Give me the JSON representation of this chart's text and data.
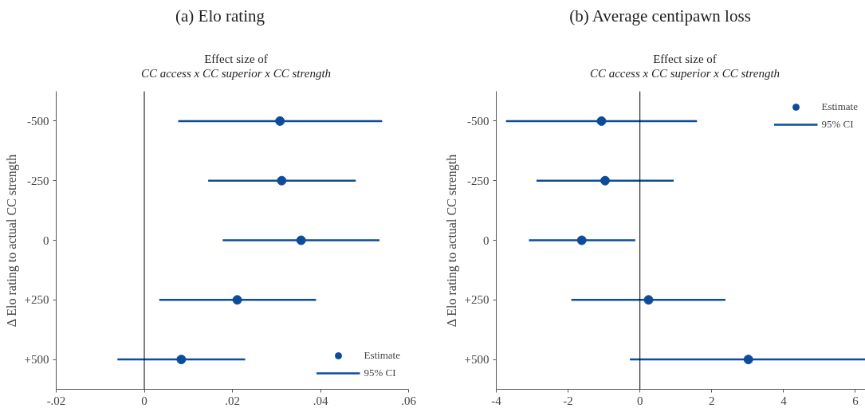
{
  "chart_data": [
    {
      "type": "scatter",
      "orientation": "horizontal",
      "title": "(a) Elo rating",
      "subtitle": "Effect size of\nCC access x CC superior x CC strength",
      "ylabel": "Δ Elo rating to actual CC strength",
      "annotations": [
        "95% CI"
      ],
      "categories": [
        "-500",
        "-250",
        "0",
        "+250",
        "+500"
      ],
      "series": [
        {
          "name": "Estimate",
          "color": "#0d4c9b",
          "values": [
            0.0308,
            0.0312,
            0.0356,
            0.0211,
            0.0084
          ],
          "errors": [
            [
              0.0077,
              0.054
            ],
            [
              0.0145,
              0.048
            ],
            [
              0.0178,
              0.0534
            ],
            [
              0.0034,
              0.039
            ],
            [
              -0.0061,
              0.0229
            ]
          ]
        }
      ],
      "xlim": [
        -0.02,
        0.06
      ],
      "xticks": [
        {
          "value": -0.02,
          "label": "-.02"
        },
        0,
        {
          "value": 0.02,
          "label": ".02"
        },
        {
          "value": 0.04,
          "label": ".04"
        },
        {
          "value": 0.06,
          "label": ".06"
        }
      ],
      "ref_lines": [
        {
          "axis": "x",
          "value": 0,
          "color": "#000000"
        }
      ],
      "legend": "bottom right",
      "marker": "circle",
      "grid": false
    },
    {
      "type": "scatter",
      "orientation": "horizontal",
      "title": "(b) Average centipawn loss",
      "subtitle": "Effect size of\nCC access x CC superior x CC strength",
      "ylabel": "Δ Elo rating to actual CC strength",
      "annotations": [
        "95% CI"
      ],
      "categories": [
        "-500",
        "-250",
        "0",
        "+250",
        "+500"
      ],
      "series": [
        {
          "name": "Estimate",
          "color": "#0d4c9b",
          "values": [
            -1.07,
            -0.97,
            -1.62,
            0.24,
            3.02
          ],
          "errors": [
            [
              -3.73,
              1.59
            ],
            [
              -2.88,
              0.94
            ],
            [
              -3.09,
              -0.13
            ],
            [
              -1.91,
              2.38
            ],
            [
              -0.28,
              6.3
            ]
          ]
        }
      ],
      "xlim": [
        -4,
        6.3
      ],
      "xticks": [
        -4,
        -2,
        0,
        2,
        4,
        6
      ],
      "ref_lines": [
        {
          "axis": "x",
          "value": 0,
          "color": "#000000"
        }
      ],
      "legend": "top right",
      "marker": "circle",
      "grid": false
    }
  ]
}
